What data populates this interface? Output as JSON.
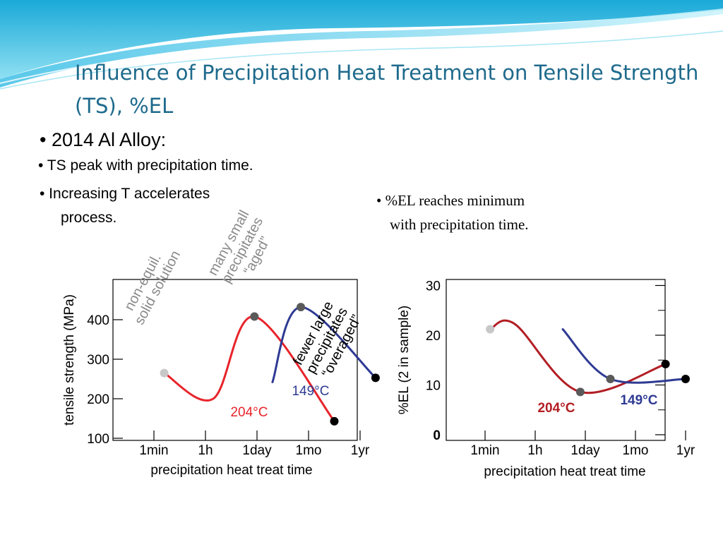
{
  "slide": {
    "title": "Influence of Precipitation Heat Treatment on Tensile Strength (TS), %EL",
    "heading": "• 2014 Al Alloy:",
    "bullets": [
      "•  TS peak with precipitation time.",
      "•  Increasing T accelerates",
      "process."
    ],
    "el_note": [
      "• %EL reaches minimum",
      "with precipitation time."
    ]
  },
  "annotations": {
    "non_equil": [
      "non-equil.",
      "solid solution"
    ],
    "aged": [
      "many small",
      "precipitates",
      "“aged”"
    ],
    "overaged": [
      "fewer large",
      "precipitates",
      "“overaged”"
    ]
  },
  "chart_data": [
    {
      "type": "line",
      "title": "",
      "xlabel": "precipitation heat treat time",
      "ylabel": "tensile strength (MPa)",
      "x_ticks": [
        "1min",
        "1h",
        "1day",
        "1mo",
        "1yr"
      ],
      "y_ticks": [
        100,
        200,
        300,
        400
      ],
      "ylim": [
        100,
        500
      ],
      "series": [
        {
          "name": "204°C",
          "color": "#e8242b",
          "points": [
            [
              0.2,
              265
            ],
            [
              1.15,
              200
            ],
            [
              1.95,
              408
            ],
            [
              3.5,
              143
            ]
          ]
        },
        {
          "name": "149°C",
          "color": "#2e3a93",
          "points": [
            [
              2.3,
              242
            ],
            [
              2.85,
              432
            ],
            [
              4.3,
              253
            ]
          ]
        }
      ]
    },
    {
      "type": "line",
      "title": "",
      "xlabel": "precipitation heat treat time",
      "ylabel": "%EL (2 in sample)",
      "x_ticks": [
        "1min",
        "1h",
        "1day",
        "1mo",
        "1yr"
      ],
      "y_ticks": [
        0,
        10,
        20,
        30
      ],
      "ylim": [
        0,
        30
      ],
      "series": [
        {
          "name": "204°C",
          "color": "#b21e24",
          "points": [
            [
              0.1,
              21.2
            ],
            [
              0.6,
              22.2
            ],
            [
              1.9,
              8.6
            ],
            [
              3.6,
              14.2
            ]
          ]
        },
        {
          "name": "149°C",
          "color": "#2e3a93",
          "points": [
            [
              1.55,
              21.2
            ],
            [
              2.5,
              11.2
            ],
            [
              4.0,
              11.2
            ]
          ]
        }
      ]
    }
  ]
}
